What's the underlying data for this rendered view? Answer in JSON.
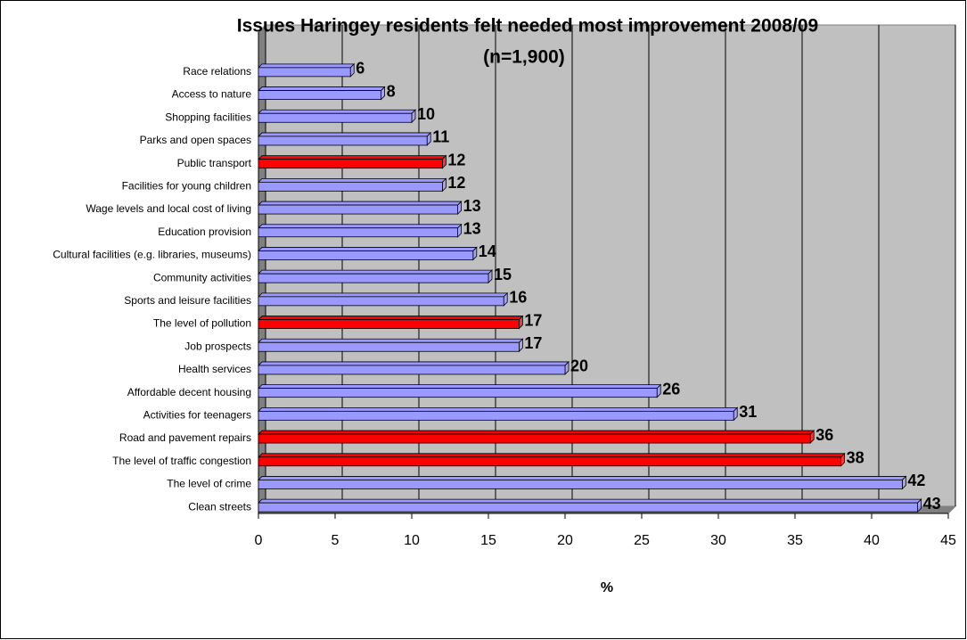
{
  "chart_data": {
    "type": "bar",
    "orientation": "horizontal",
    "title": "Issues Haringey residents felt needed most improvement  2008/09",
    "subtitle": "(n=1,900)",
    "x_label": "%",
    "categories": [
      "Race relations",
      "Access to nature",
      "Shopping facilities",
      "Parks and open spaces",
      "Public transport",
      "Facilities for young children",
      "Wage levels and local cost of living",
      "Education provision",
      "Cultural facilities (e.g. libraries, museums)",
      "Community activities",
      "Sports and leisure facilities",
      "The level of pollution",
      "Job prospects",
      "Health services",
      "Affordable decent housing",
      "Activities for teenagers",
      "Road and pavement repairs",
      "The level of traffic congestion",
      "The level of crime",
      "Clean streets"
    ],
    "values": [
      6,
      8,
      10,
      11,
      12,
      12,
      13,
      13,
      14,
      15,
      16,
      17,
      17,
      20,
      26,
      31,
      36,
      38,
      42,
      43
    ],
    "colors": [
      "#9999ff",
      "#9999ff",
      "#9999ff",
      "#9999ff",
      "#ff0000",
      "#9999ff",
      "#9999ff",
      "#9999ff",
      "#9999ff",
      "#9999ff",
      "#9999ff",
      "#ff0000",
      "#9999ff",
      "#9999ff",
      "#9999ff",
      "#9999ff",
      "#ff0000",
      "#ff0000",
      "#9999ff",
      "#9999ff"
    ],
    "xlim": [
      0,
      45
    ],
    "xticks": [
      0,
      5,
      10,
      15,
      20,
      25,
      30,
      35,
      40,
      45
    ],
    "grid": true
  }
}
